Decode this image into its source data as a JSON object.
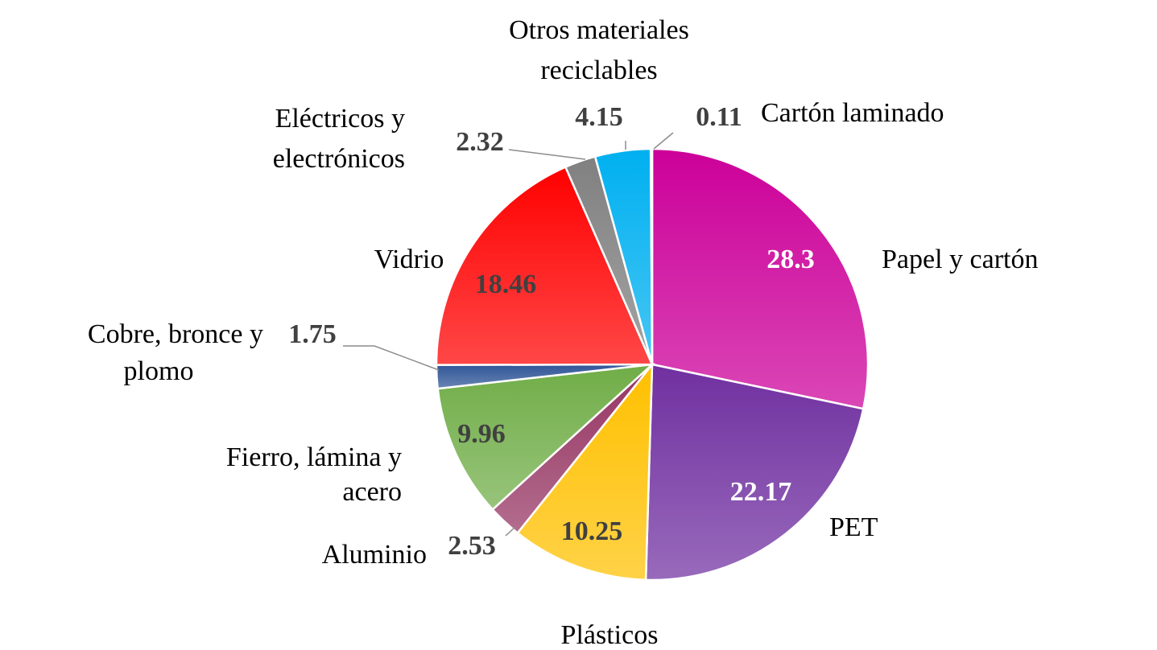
{
  "chart_data": {
    "type": "pie",
    "slices": [
      {
        "label": "Papel y cartón",
        "value": 28.3,
        "color": "#CC0099",
        "value_color": "#ffffff"
      },
      {
        "label": "PET",
        "value": 22.17,
        "color": "#7030A0",
        "value_color": "#ffffff"
      },
      {
        "label": "Plásticos",
        "value": 10.25,
        "color": "#FFC000",
        "value_color": "#404040"
      },
      {
        "label": "Aluminio",
        "value": 2.53,
        "color": "#953462",
        "value_color": "#404040"
      },
      {
        "label": "Fierro, lámina y acero",
        "lines": [
          "Fierro, lámina y",
          "acero"
        ],
        "value": 9.96,
        "color": "#70AD47",
        "value_color": "#404040"
      },
      {
        "label": "Cobre, bronce y plomo",
        "lines": [
          "Cobre, bronce y",
          "plomo"
        ],
        "value": 1.75,
        "color": "#2F5597",
        "value_color": "#404040"
      },
      {
        "label": "Vidrio",
        "value": 18.46,
        "color": "#FF0000",
        "value_color": "#404040"
      },
      {
        "label": "Eléctricos y electrónicos",
        "lines": [
          "Eléctricos y",
          "electrónicos"
        ],
        "value": 2.32,
        "color": "#808080",
        "value_color": "#404040"
      },
      {
        "label": "Otros materiales reciclables",
        "lines": [
          "Otros materiales",
          "reciclables"
        ],
        "value": 4.15,
        "color": "#00B0F0",
        "value_color": "#404040"
      },
      {
        "label": "Cartón laminado",
        "value": 0.11,
        "color": "#BFBFBF",
        "value_color": "#404040"
      }
    ]
  }
}
